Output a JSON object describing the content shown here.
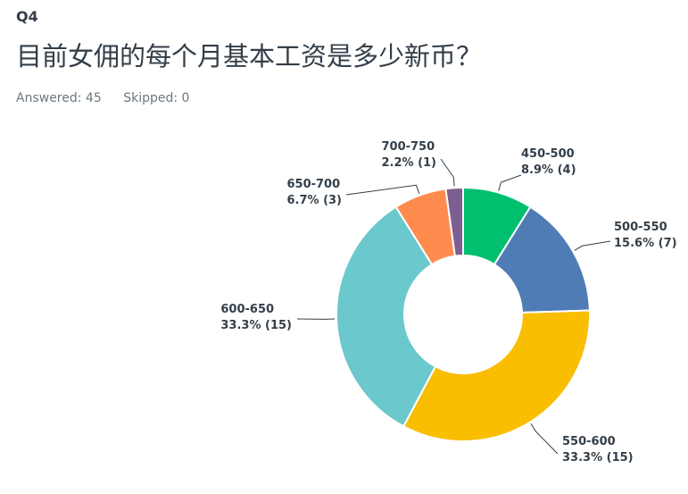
{
  "question": {
    "number": "Q4",
    "title": "目前女佣的每个月基本工资是多少新币？"
  },
  "stats": {
    "answered": "Answered: 45",
    "skipped": "Skipped: 0"
  },
  "chart_data": {
    "type": "pie",
    "donut": true,
    "slices": [
      {
        "label": "450-500",
        "value": 8.9,
        "count": 4,
        "pct_text": "8.9% (4)",
        "color": "#00bf6f"
      },
      {
        "label": "500-550",
        "value": 15.6,
        "count": 7,
        "pct_text": "15.6% (7)",
        "color": "#507cb6"
      },
      {
        "label": "550-600",
        "value": 33.3,
        "count": 15,
        "pct_text": "33.3% (15)",
        "color": "#f9be00"
      },
      {
        "label": "600-650",
        "value": 33.3,
        "count": 15,
        "pct_text": "33.3% (15)",
        "color": "#6bc8cd"
      },
      {
        "label": "650-700",
        "value": 6.7,
        "count": 3,
        "pct_text": "6.7% (3)",
        "color": "#ff8b4f"
      },
      {
        "label": "700-750",
        "value": 2.2,
        "count": 1,
        "pct_text": "2.2% (1)",
        "color": "#7d5e90"
      }
    ]
  }
}
